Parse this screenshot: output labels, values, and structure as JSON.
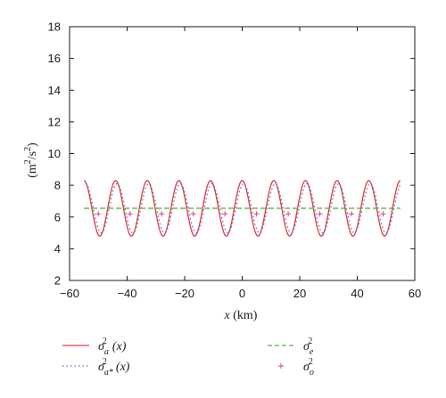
{
  "chart_data": {
    "type": "line",
    "title": "",
    "xlabel": "x (km)",
    "ylabel": "(m²/s²)",
    "xlim": [
      -60,
      60
    ],
    "ylim": [
      2,
      18
    ],
    "xticks": [
      -60,
      -40,
      -20,
      0,
      20,
      40,
      60
    ],
    "yticks": [
      2,
      4,
      6,
      8,
      10,
      12,
      14,
      16,
      18
    ],
    "grid": false,
    "legend_placement": "below plot",
    "series": [
      {
        "name": "σa²(x)",
        "style": "solid",
        "color": "#e0393e",
        "function": {
          "kind": "cosine",
          "mean": 6.55,
          "amplitude": 1.75,
          "period": 11,
          "x_start": -55,
          "x_end": 55
        }
      },
      {
        "name": "σa*²(x)",
        "style": "dotted",
        "color": "#6b6bb0",
        "function": {
          "kind": "cosine",
          "mean": 6.55,
          "amplitude": 1.55,
          "period": 11,
          "x_start": -54.5,
          "x_end": 55.5
        }
      },
      {
        "name": "σe²",
        "style": "dashed",
        "color": "#58b046",
        "x": [
          -55,
          55
        ],
        "y": [
          6.55,
          6.55
        ]
      },
      {
        "name": "σo²",
        "style": "markers",
        "marker": "+",
        "color": "#d94fa3",
        "x": [
          -50,
          -39,
          -28,
          -17,
          -6,
          5,
          16,
          27,
          38,
          49
        ],
        "y": [
          6.2,
          6.2,
          6.2,
          6.2,
          6.2,
          6.2,
          6.2,
          6.2,
          6.2,
          6.2
        ]
      }
    ]
  },
  "legend": [
    {
      "symbol": "σ",
      "sub": "a",
      "suffix": "(x)"
    },
    {
      "symbol": "σ",
      "sub": "a*",
      "suffix": "(x)"
    },
    {
      "symbol": "σ",
      "sub": "e",
      "suffix": ""
    },
    {
      "symbol": "σ",
      "sub": "o",
      "suffix": ""
    }
  ],
  "labels": {
    "y_prefix": "(m",
    "y_mid": "/s",
    "y_suffix": ")",
    "sup": "2",
    "x_var": "x",
    "x_unit": " (km)"
  }
}
